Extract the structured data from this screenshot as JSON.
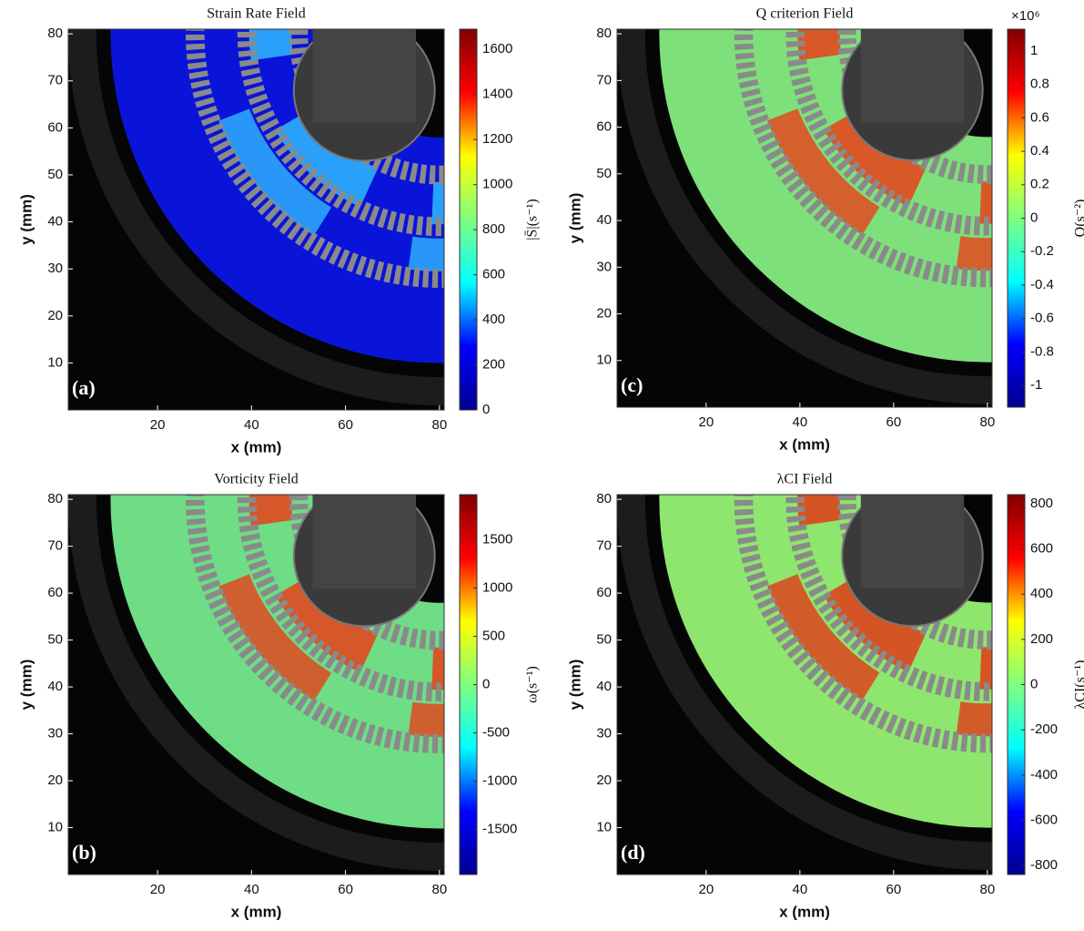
{
  "chart_data": [
    {
      "type": "heatmap",
      "title": "Strain Rate Field",
      "panel_label": "(a)",
      "xlabel": "x (mm)",
      "ylabel": "y (mm)",
      "xlim": [
        1,
        81
      ],
      "ylim": [
        0,
        81
      ],
      "xticks": [
        20,
        40,
        60,
        80
      ],
      "yticks": [
        10,
        20,
        30,
        40,
        50,
        60,
        70,
        80
      ],
      "background_color": "#0a14d8",
      "highlight_color": "#2fb8ff",
      "colormap": "jet",
      "colorbar": {
        "label": "|S̄|(s⁻¹)",
        "clim": [
          0,
          1690
        ],
        "ticks": [
          0,
          200,
          400,
          600,
          800,
          1000,
          1200,
          1400,
          1600
        ]
      }
    },
    {
      "type": "heatmap",
      "title": "Q criterion Field",
      "panel_label": "(c)",
      "xlabel": "x (mm)",
      "ylabel": "y (mm)",
      "xlim": [
        1,
        81
      ],
      "ylim": [
        0,
        81
      ],
      "xticks": [
        20,
        40,
        60,
        80
      ],
      "yticks": [
        10,
        20,
        30,
        40,
        50,
        60,
        70,
        80
      ],
      "background_color": "#7ee07a",
      "highlight_color": "#e8401a",
      "colormap": "jet",
      "colorbar": {
        "label": "Q(s⁻²)",
        "multiplier": "×10⁶",
        "clim": [
          -1.13,
          1.13
        ],
        "ticks": [
          -1,
          -0.8,
          -0.6,
          -0.4,
          -0.2,
          0,
          0.2,
          0.4,
          0.6,
          0.8,
          1
        ]
      }
    },
    {
      "type": "heatmap",
      "title": "Vorticity Field",
      "panel_label": "(b)",
      "xlabel": "x (mm)",
      "ylabel": "y (mm)",
      "xlim": [
        1,
        81
      ],
      "ylim": [
        0,
        81
      ],
      "xticks": [
        20,
        40,
        60,
        80
      ],
      "yticks": [
        10,
        20,
        30,
        40,
        50,
        60,
        70,
        80
      ],
      "background_color": "#6fdc86",
      "highlight_color": "#e8401a",
      "colormap": "jet",
      "colorbar": {
        "label": "ω(s⁻¹)",
        "clim": [
          -1965,
          1965
        ],
        "ticks": [
          -1500,
          -1000,
          -500,
          0,
          500,
          1000,
          1500
        ]
      }
    },
    {
      "type": "heatmap",
      "title": "λCI Field",
      "panel_label": "(d)",
      "xlabel": "x (mm)",
      "ylabel": "y (mm)",
      "xlim": [
        1,
        81
      ],
      "ylim": [
        0,
        81
      ],
      "xticks": [
        20,
        40,
        60,
        80
      ],
      "yticks": [
        10,
        20,
        30,
        40,
        50,
        60,
        70,
        80
      ],
      "background_color": "#8ee66e",
      "highlight_color": "#e23a18",
      "colormap": "jet",
      "colorbar": {
        "label": "λCI(s⁻¹)",
        "clim": [
          -840,
          840
        ],
        "ticks": [
          -800,
          -600,
          -400,
          -200,
          0,
          200,
          400,
          600,
          800
        ]
      }
    }
  ]
}
